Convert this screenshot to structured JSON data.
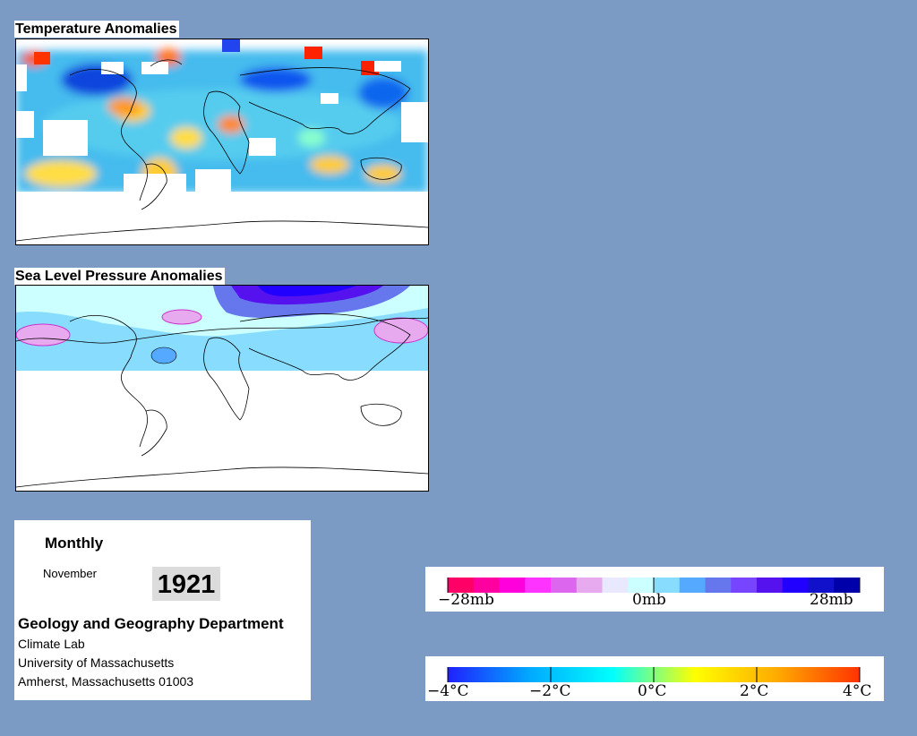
{
  "maps": {
    "temperature": {
      "title": "Temperature Anomalies"
    },
    "pressure": {
      "title": "Sea Level Pressure Anomalies"
    }
  },
  "info": {
    "frequency": "Monthly",
    "month": "November",
    "year": "1921",
    "department": "Geology and Geography Department",
    "lab": "Climate Lab",
    "university": "University of Massachusetts",
    "address": "Amherst, Massachusetts 01003"
  },
  "pressure_legend": {
    "labels": [
      "−28mb",
      "0mb",
      "28mb"
    ],
    "colors": [
      "#ff0066",
      "#ff00a0",
      "#ff00dd",
      "#ff33ff",
      "#dd66ee",
      "#e8aaee",
      "#e8e8ff",
      "#ccffff",
      "#88ddff",
      "#55aaff",
      "#6677ee",
      "#7744ff",
      "#5511ee",
      "#2200ff",
      "#1111cc",
      "#0000aa"
    ]
  },
  "temperature_legend": {
    "labels": [
      "−4°C",
      "−2°C",
      "0°C",
      "2°C",
      "4°C"
    ],
    "gradient": [
      "#2020ff",
      "#00aaff",
      "#00ffff",
      "#ffff00",
      "#ffaa00",
      "#ff3300"
    ]
  }
}
